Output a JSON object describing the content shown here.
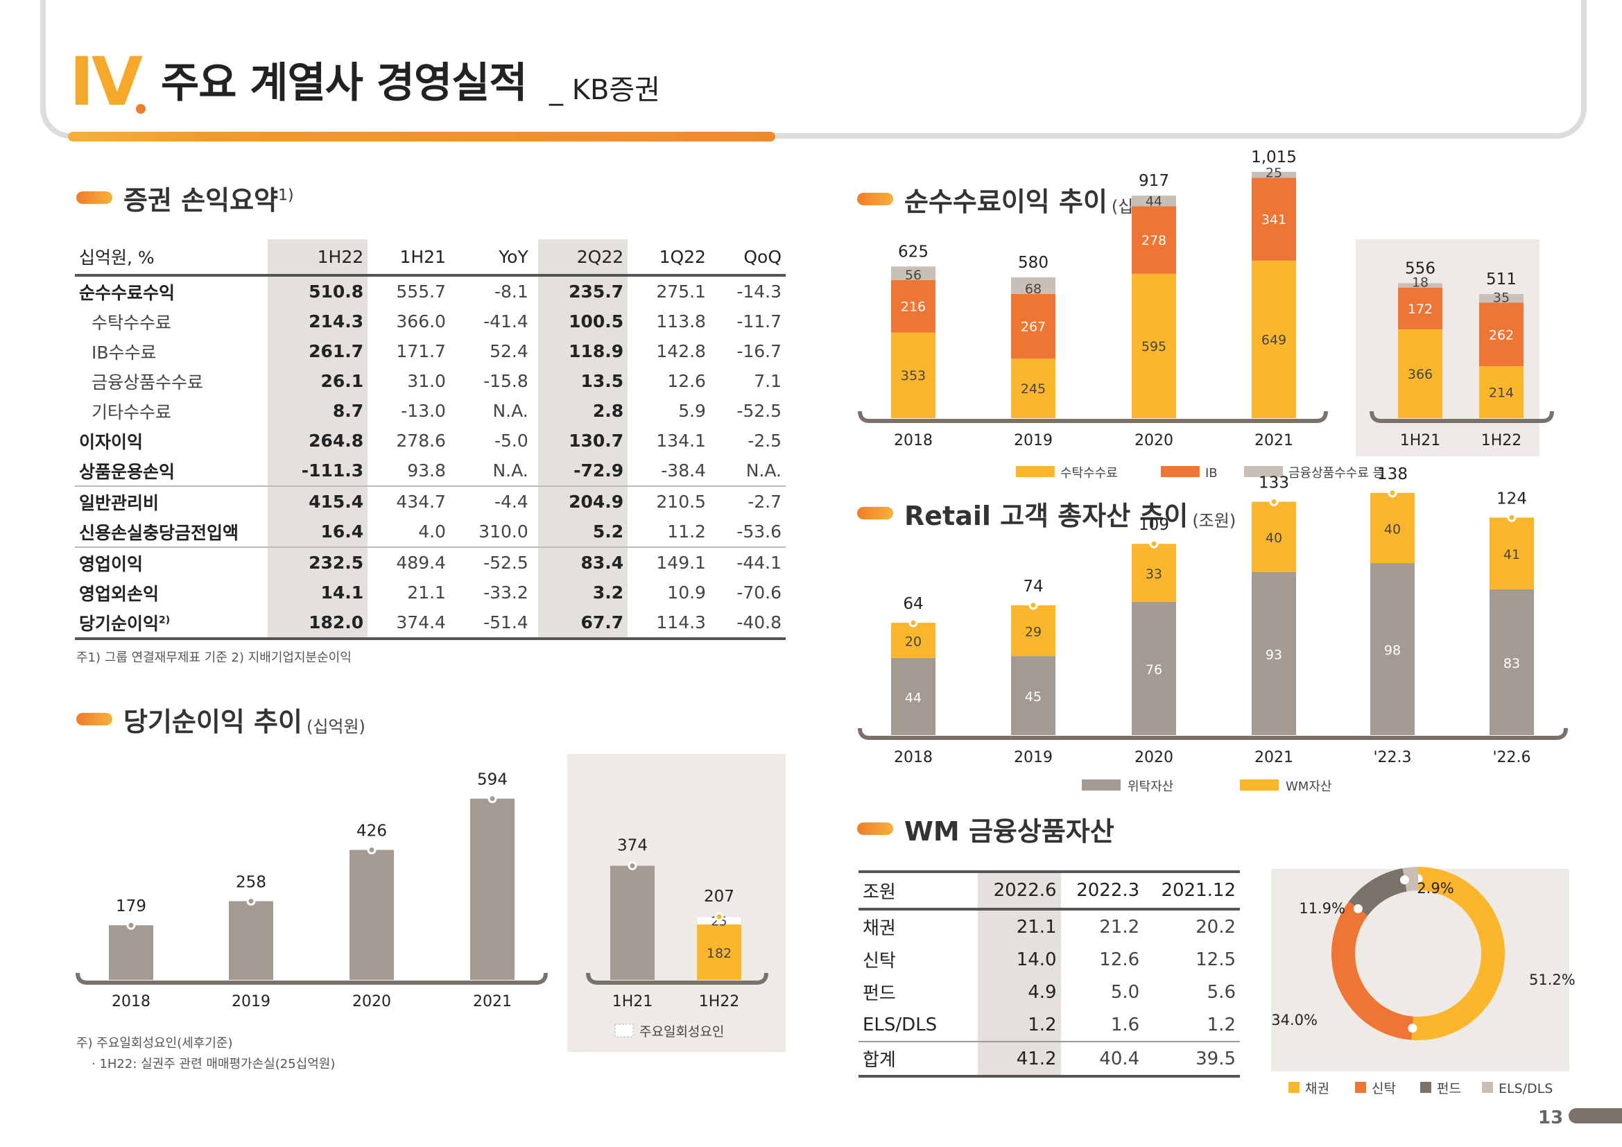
{
  "header": {
    "roman": "IV",
    "title": "주요 계열사 경영실적",
    "subtitle": "_ KB증권"
  },
  "pnl": {
    "title": "증권 손익요약",
    "sup": "1)",
    "columns": [
      "십억원, %",
      "1H22",
      "1H21",
      "YoY",
      "2Q22",
      "1Q22",
      "QoQ"
    ],
    "rows": [
      {
        "label": "순수수료수익",
        "values": [
          "510.8",
          "555.7",
          "-8.1",
          "235.7",
          "275.1",
          "-14.3"
        ]
      },
      {
        "label": "수탁수수료",
        "values": [
          "214.3",
          "366.0",
          "-41.4",
          "100.5",
          "113.8",
          "-11.7"
        ]
      },
      {
        "label": "IB수수료",
        "values": [
          "261.7",
          "171.7",
          "52.4",
          "118.9",
          "142.8",
          "-16.7"
        ]
      },
      {
        "label": "금융상품수수료",
        "values": [
          "26.1",
          "31.0",
          "-15.8",
          "13.5",
          "12.6",
          "7.1"
        ]
      },
      {
        "label": "기타수수료",
        "values": [
          "8.7",
          "-13.0",
          "N.A.",
          "2.8",
          "5.9",
          "-52.5"
        ]
      },
      {
        "label": "이자이익",
        "values": [
          "264.8",
          "278.6",
          "-5.0",
          "130.7",
          "134.1",
          "-2.5"
        ]
      },
      {
        "label": "상품운용손익",
        "values": [
          "-111.3",
          "93.8",
          "N.A.",
          "-72.9",
          "-38.4",
          "N.A."
        ]
      },
      {
        "label": "일반관리비",
        "values": [
          "415.4",
          "434.7",
          "-4.4",
          "204.9",
          "210.5",
          "-2.7"
        ]
      },
      {
        "label": "신용손실충당금전입액",
        "values": [
          "16.4",
          "4.0",
          "310.0",
          "5.2",
          "11.2",
          "-53.6"
        ]
      },
      {
        "label": "영업이익",
        "values": [
          "232.5",
          "489.4",
          "-52.5",
          "83.4",
          "149.1",
          "-44.1"
        ]
      },
      {
        "label": "영업외손익",
        "values": [
          "14.1",
          "21.1",
          "-33.2",
          "3.2",
          "10.9",
          "-70.6"
        ]
      },
      {
        "label": "당기순이익",
        "label_sup": "2)",
        "values": [
          "182.0",
          "374.4",
          "-51.4",
          "67.7",
          "114.3",
          "-40.8"
        ]
      }
    ],
    "footnote": "주1) 그룹 연결재무제표 기준   2) 지배기업지분순이익"
  },
  "net_income": {
    "title": "당기순이익 추이",
    "unit": "(십억원)",
    "footnote1": "주) 주요일회성요인(세후기준)",
    "footnote2": "· 1H22: 실권주 관련 매매평가손실(25십억원)",
    "legend_onetime": "주요일회성요인"
  },
  "fee": {
    "title": "순수수료이익 추이",
    "unit": "(십억원)",
    "legend": [
      "수탁수수료",
      "IB",
      "금융상품수수료 등"
    ]
  },
  "retail": {
    "title": "Retail 고객 총자산 추이",
    "unit": "(조원)",
    "legend": [
      "위탁자산",
      "WM자산"
    ]
  },
  "wm": {
    "title": "WM 금융상품자산",
    "columns": [
      "조원",
      "2022.6",
      "2022.3",
      "2021.12"
    ],
    "rows": [
      {
        "label": "채권",
        "values": [
          "21.1",
          "21.2",
          "20.2"
        ]
      },
      {
        "label": "신탁",
        "values": [
          "14.0",
          "12.6",
          "12.5"
        ]
      },
      {
        "label": "펀드",
        "values": [
          "4.9",
          "5.0",
          "5.6"
        ]
      },
      {
        "label": "ELS/DLS",
        "values": [
          "1.2",
          "1.6",
          "1.2"
        ]
      }
    ],
    "total": {
      "label": "합계",
      "values": [
        "41.2",
        "40.4",
        "39.5"
      ]
    }
  },
  "page_number": "13",
  "colors": {
    "gray": "#a39a91",
    "yellow": "#fbb62c",
    "orange": "#ee7533",
    "lightgray": "#c8c0b6",
    "darkgray": "#7a716a",
    "panel": "#eeebe7"
  },
  "chart_data": [
    {
      "id": "net_income_annual",
      "type": "bar",
      "categories": [
        "2018",
        "2019",
        "2020",
        "2021"
      ],
      "values": [
        179,
        258,
        426,
        594
      ]
    },
    {
      "id": "net_income_half",
      "type": "bar",
      "categories": [
        "1H21",
        "1H22"
      ],
      "series": [
        {
          "name": "",
          "values": [
            374,
            182
          ]
        },
        {
          "name": "주요일회성요인",
          "values": [
            0,
            25
          ]
        }
      ],
      "totals": [
        374,
        207
      ]
    },
    {
      "id": "fee_annual",
      "type": "bar",
      "stacked": true,
      "categories": [
        "2018",
        "2019",
        "2020",
        "2021"
      ],
      "series": [
        {
          "name": "수탁수수료",
          "values": [
            353,
            245,
            595,
            649
          ]
        },
        {
          "name": "IB",
          "values": [
            216,
            267,
            278,
            341
          ]
        },
        {
          "name": "금융상품수수료 등",
          "values": [
            56,
            68,
            44,
            25
          ]
        }
      ],
      "totals": [
        "625",
        "580",
        "917",
        "1,015"
      ]
    },
    {
      "id": "fee_half",
      "type": "bar",
      "stacked": true,
      "categories": [
        "1H21",
        "1H22"
      ],
      "series": [
        {
          "name": "수탁수수료",
          "values": [
            366,
            214
          ]
        },
        {
          "name": "IB",
          "values": [
            172,
            262
          ]
        },
        {
          "name": "금융상품수수료 등",
          "values": [
            18,
            35
          ]
        }
      ],
      "totals": [
        "556",
        "511"
      ]
    },
    {
      "id": "retail_assets",
      "type": "bar",
      "stacked": true,
      "categories": [
        "2018",
        "2019",
        "2020",
        "2021",
        "'22.3",
        "'22.6"
      ],
      "series": [
        {
          "name": "위탁자산",
          "values": [
            44,
            45,
            76,
            93,
            98,
            83
          ]
        },
        {
          "name": "WM자산",
          "values": [
            20,
            29,
            33,
            40,
            40,
            41
          ]
        }
      ],
      "totals": [
        64,
        74,
        109,
        133,
        138,
        124
      ]
    },
    {
      "id": "wm_mix",
      "type": "pie",
      "donut": true,
      "labels": [
        "채권",
        "신탁",
        "펀드",
        "ELS/DLS"
      ],
      "values": [
        51.2,
        34.0,
        11.9,
        2.9
      ],
      "value_labels": [
        "51.2%",
        "34.0%",
        "11.9%",
        "2.9%"
      ]
    }
  ]
}
